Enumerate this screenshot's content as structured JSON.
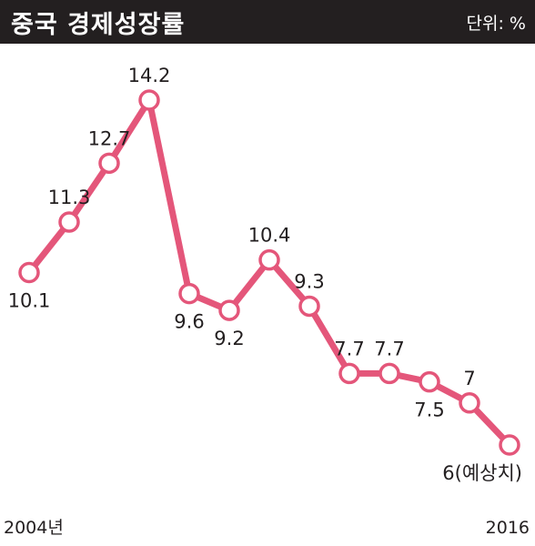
{
  "header": {
    "title": "중국 경제성장률",
    "unit": "단위: %"
  },
  "colors": {
    "line": "#e4567a",
    "marker_fill": "#ffffff",
    "header_bg": "#231f20",
    "text": "#231f20"
  },
  "chart_data": {
    "type": "line",
    "title": "중국 경제성장률",
    "unit": "단위: %",
    "x": [
      "2004",
      "2005",
      "2006",
      "2007",
      "2008",
      "2009",
      "2010",
      "2011",
      "2012",
      "2013",
      "2014",
      "2015",
      "2016"
    ],
    "x_tick_labels": {
      "first": "2004년",
      "last": "2016"
    },
    "series": [
      {
        "values": [
          10.1,
          11.3,
          12.7,
          14.2,
          9.6,
          9.2,
          10.4,
          9.3,
          7.7,
          7.7,
          7.5,
          7,
          6
        ],
        "data_labels": [
          "10.1",
          "11.3",
          "12.7",
          "14.2",
          "9.6",
          "9.2",
          "10.4",
          "9.3",
          "7.7",
          "7.7",
          "7.5",
          "7",
          "6(예상치)"
        ],
        "label_pos": [
          "below",
          "above",
          "above",
          "above",
          "below",
          "below",
          "above",
          "above",
          "above",
          "above",
          "below",
          "above",
          "below"
        ]
      }
    ],
    "ylim": [
      6,
      14.2
    ],
    "grid": false,
    "legend": "none"
  }
}
